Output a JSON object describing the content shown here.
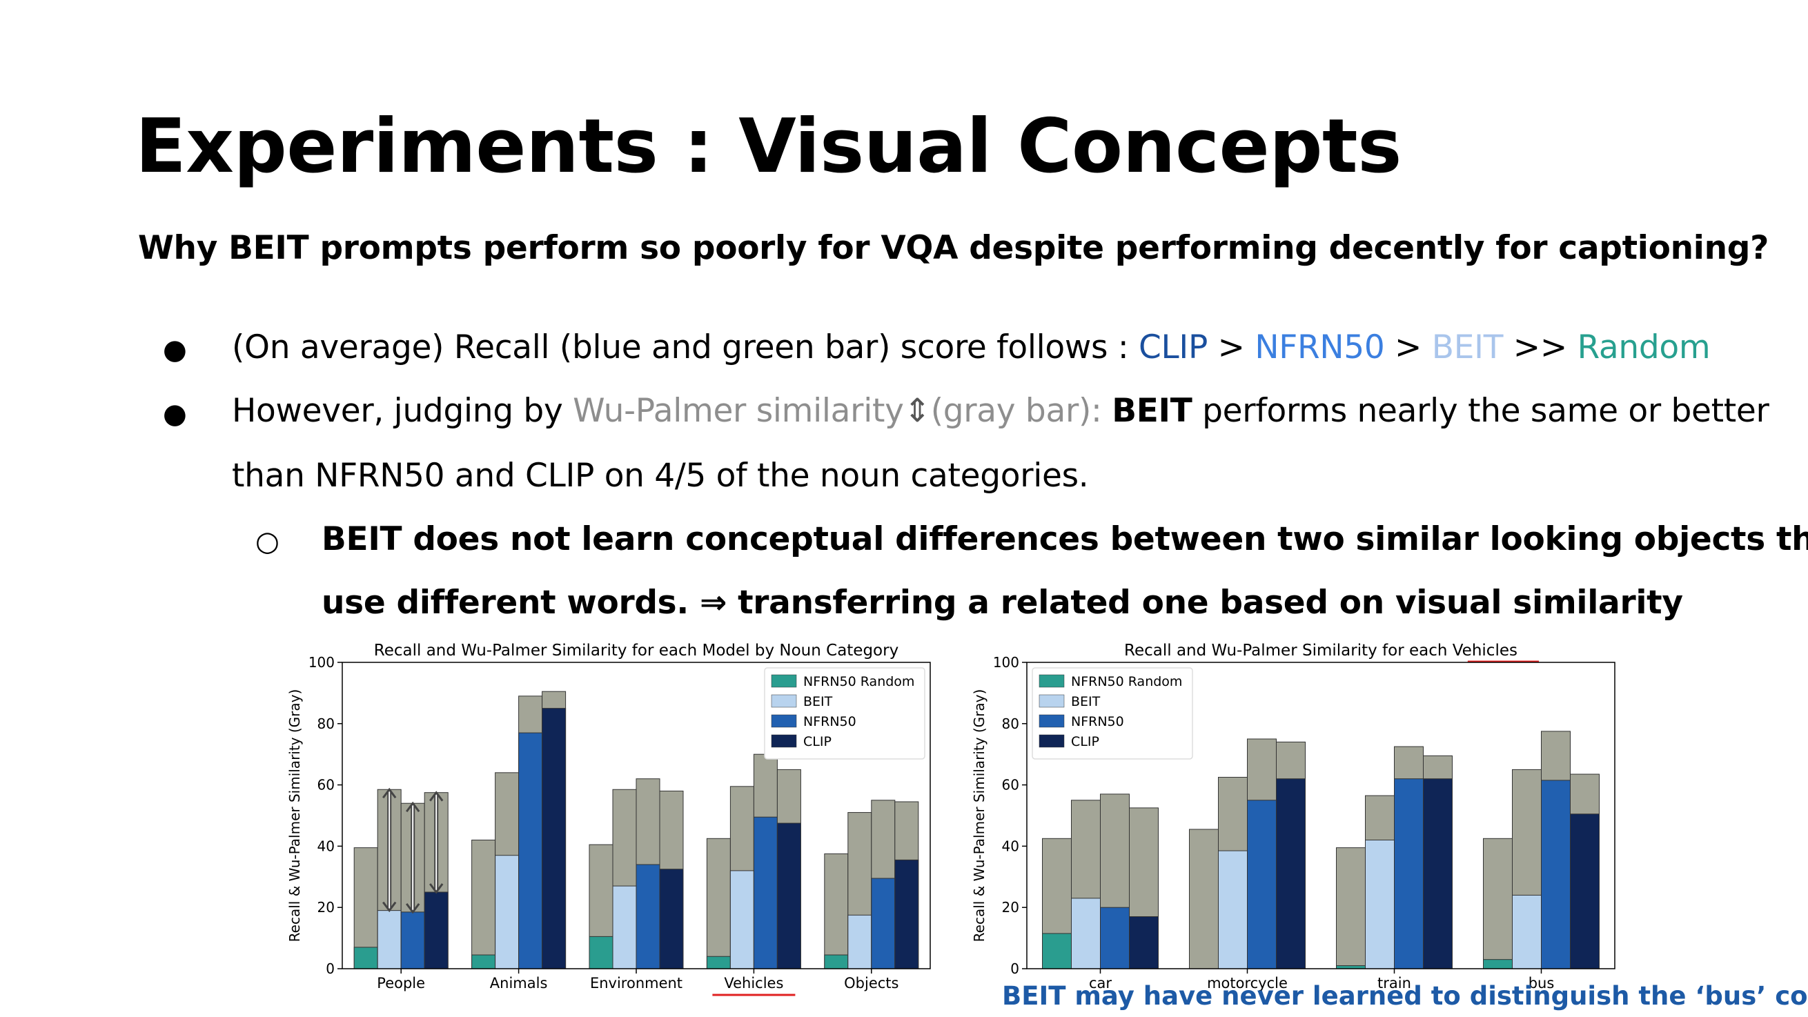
{
  "slide": {
    "title": "Experiments : Visual Concepts",
    "subtitle": "Why BEIT prompts perform so poorly for VQA despite performing decently for captioning?",
    "bullet1": {
      "marker": "●",
      "prefix": "(On average) Recall (blue and green bar) score follows : ",
      "clip": "CLIP",
      "gt1": " > ",
      "nfrn": "NFRN50",
      "gt2": " > ",
      "beit": "BEIT",
      "gt3": " >> ",
      "random": "Random"
    },
    "bullet2": {
      "marker": "●",
      "prefix": "However, judging by ",
      "wu": "Wu-Palmer similarity",
      "arrow": "⇕",
      "gray": "(gray bar): ",
      "beit": "BEIT",
      "rest": " performs nearly the same or better",
      "line2": "than NFRN50 and CLIP on 4/5 of the noun categories."
    },
    "sub_bullet": {
      "marker": "○",
      "line1": "BEIT does not learn conceptual differences between two similar looking objects that",
      "line2": "use different words. ⇒ transferring a related one based on visual similarity"
    },
    "caption": "BEIT may have never learned to distinguish the ‘bus’ concept"
  },
  "colors": {
    "NFRN50 Random": "#2a9d8f",
    "BEIT": "#b8d3ee",
    "NFRN50": "#2160b0",
    "CLIP": "#0f2556",
    "gray": "#a3a597",
    "underline": "#e02020"
  },
  "chart_data": [
    {
      "type": "bar",
      "title": "Recall and Wu-Palmer Similarity for each Model by Noun Category",
      "ylabel": "Recall & Wu-Palmer Similarity (Gray)",
      "xlabel": "",
      "ylim": [
        0,
        100
      ],
      "yticks": [
        0,
        20,
        40,
        60,
        80,
        100
      ],
      "categories": [
        "People",
        "Animals",
        "Environment",
        "Vehicles",
        "Objects"
      ],
      "underlined_category": "Vehicles",
      "legend_position": "top-right",
      "series": [
        {
          "name": "NFRN50 Random",
          "recall": [
            7,
            4.5,
            10.5,
            4,
            4.5
          ],
          "wu_palmer": [
            39.5,
            42,
            40.5,
            42.5,
            37.5
          ]
        },
        {
          "name": "BEIT",
          "recall": [
            19,
            37,
            27,
            32,
            17.5
          ],
          "wu_palmer": [
            58.5,
            64,
            58.5,
            59.5,
            51
          ]
        },
        {
          "name": "NFRN50",
          "recall": [
            18.5,
            77,
            34,
            49.5,
            29.5
          ],
          "wu_palmer": [
            54,
            89,
            62,
            70,
            55
          ]
        },
        {
          "name": "CLIP",
          "recall": [
            25,
            85,
            32.5,
            47.5,
            35.5
          ],
          "wu_palmer": [
            57.5,
            90.5,
            58,
            65,
            54.5
          ]
        }
      ],
      "annotation": "double-headed arrows on People bars marking gap between recall and Wu-Palmer similarity"
    },
    {
      "type": "bar",
      "title": "Recall and Wu-Palmer Similarity for each Vehicles",
      "title_underlined_word": "Vehicles",
      "ylabel": "Recall & Wu-Palmer Similarity (Gray)",
      "xlabel": "",
      "ylim": [
        0,
        100
      ],
      "yticks": [
        0,
        20,
        40,
        60,
        80,
        100
      ],
      "categories": [
        "car",
        "motorcycle",
        "train",
        "bus"
      ],
      "legend_position": "top-left",
      "series": [
        {
          "name": "NFRN50 Random",
          "recall": [
            11.5,
            0,
            1,
            3
          ],
          "wu_palmer": [
            42.5,
            45.5,
            39.5,
            42.5
          ]
        },
        {
          "name": "BEIT",
          "recall": [
            23,
            38.5,
            42,
            24
          ],
          "wu_palmer": [
            55,
            62.5,
            56.5,
            65
          ]
        },
        {
          "name": "NFRN50",
          "recall": [
            20,
            55,
            62,
            61.5
          ],
          "wu_palmer": [
            57,
            75,
            72.5,
            77.5
          ]
        },
        {
          "name": "CLIP",
          "recall": [
            17,
            62,
            62,
            50.5
          ],
          "wu_palmer": [
            52.5,
            74,
            69.5,
            63.5
          ]
        }
      ]
    }
  ]
}
